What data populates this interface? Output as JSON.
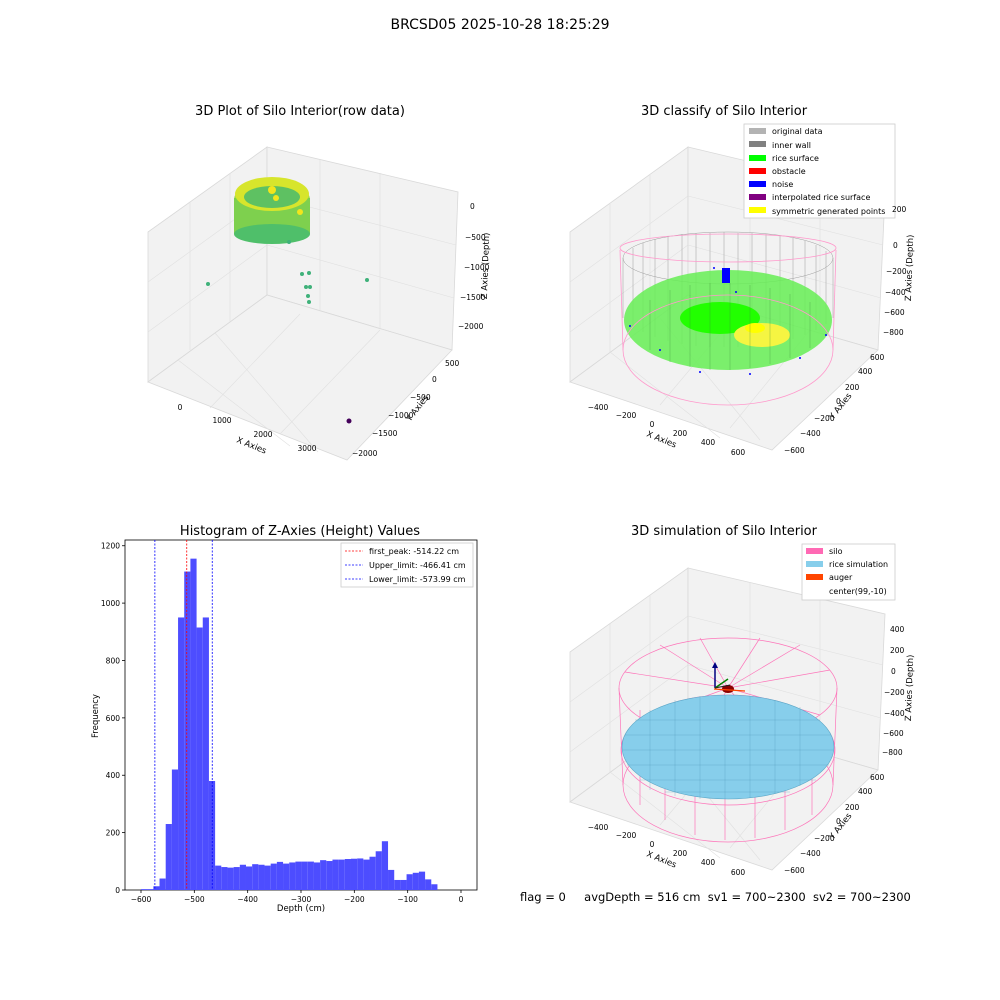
{
  "suptitle": "BRCSD05 2025-10-28 18:25:29",
  "footer": {
    "flag": "flag = 0",
    "avg_depth": "avgDepth = 516 cm",
    "sv1": "sv1 = 700~2300",
    "sv2": "sv2 = 700~2300"
  },
  "colors": {
    "original_data": "#b3b3b3",
    "inner_wall": "#808080",
    "rice_surface": "#00ff00",
    "obstacle": "#ff0000",
    "noise": "#0000ff",
    "interpolated": "#800080",
    "symmetric": "#ffff00",
    "silo": "#ff69b4",
    "rice_sim": "#87ceeb",
    "auger": "#ff4500",
    "hist_bar": "#4d4dff"
  },
  "chart_data": [
    {
      "type": "scatter",
      "title": "3D Plot of Silo Interior(row data)",
      "xlabel": "X Axies",
      "ylabel": "Y Axies",
      "zlabel": "Z Axies (Depth)",
      "x_ticks": [
        "0",
        "1000",
        "2000",
        "3000"
      ],
      "y_ticks": [
        "500",
        "0",
        "−500",
        "−1000",
        "−1500",
        "−2000"
      ],
      "z_ticks": [
        "0",
        "−500",
        "−1000",
        "−1500",
        "−2000"
      ]
    },
    {
      "type": "scatter",
      "title": "3D classify of Silo Interior",
      "xlabel": "X Axies",
      "ylabel": "Y Axies",
      "zlabel": "Z Axies (Depth)",
      "legend": [
        "original data",
        "inner wall",
        "rice surface",
        "obstacle",
        "noise",
        "interpolated rice surface",
        "symmetric generated points"
      ],
      "x_ticks": [
        "−400",
        "−200",
        "0",
        "200",
        "400",
        "600"
      ],
      "y_ticks": [
        "600",
        "400",
        "200",
        "0",
        "−200",
        "−400",
        "−600"
      ],
      "z_ticks": [
        "200",
        "0",
        "−200",
        "−400",
        "−600",
        "−800"
      ]
    },
    {
      "type": "bar",
      "title": "Histogram of Z-Axies (Height) Values",
      "xlabel": "Depth (cm)",
      "ylabel": "Frequency",
      "xlim": [
        -630,
        30
      ],
      "ylim": [
        0,
        1220
      ],
      "x_ticks": [
        -600,
        -500,
        -400,
        -300,
        -200,
        -100,
        0
      ],
      "x_tick_labels": [
        "−600",
        "−500",
        "−400",
        "−300",
        "−200",
        "−100",
        "0"
      ],
      "y_ticks": [
        0,
        200,
        400,
        600,
        800,
        1000,
        1200
      ],
      "y_tick_labels": [
        "0",
        "200",
        "400",
        "600",
        "800",
        "1000",
        "1200"
      ],
      "bin_start": -600,
      "bin_width": 11.58,
      "values": [
        3,
        3,
        13,
        40,
        230,
        420,
        950,
        1110,
        1155,
        915,
        950,
        380,
        85,
        80,
        78,
        80,
        88,
        82,
        90,
        88,
        85,
        92,
        98,
        92,
        96,
        99,
        99,
        99,
        96,
        104,
        101,
        106,
        106,
        108,
        109,
        110,
        106,
        116,
        135,
        170,
        70,
        35,
        35,
        55,
        60,
        64,
        37,
        20
      ],
      "vlines": [
        {
          "label": "first_peak: -514.22 cm",
          "x": -514.22,
          "color": "#ff0000"
        },
        {
          "label": "Upper_limit: -466.41 cm",
          "x": -466.41,
          "color": "#0000ff"
        },
        {
          "label": "Lower_limit: -573.99 cm",
          "x": -573.99,
          "color": "#0000ff"
        }
      ]
    },
    {
      "type": "scatter",
      "title": "3D simulation of Silo Interior",
      "xlabel": "X Axies",
      "ylabel": "Y Axies",
      "zlabel": "Z Axies (Depth)",
      "legend": [
        "silo",
        "rice simulation",
        "auger",
        "center(99,-10)"
      ],
      "x_ticks": [
        "−400",
        "−200",
        "0",
        "200",
        "400",
        "600"
      ],
      "y_ticks": [
        "600",
        "400",
        "200",
        "0",
        "−200",
        "−400",
        "−600"
      ],
      "z_ticks": [
        "400",
        "200",
        "0",
        "−200",
        "−400",
        "−600",
        "−800"
      ]
    }
  ]
}
